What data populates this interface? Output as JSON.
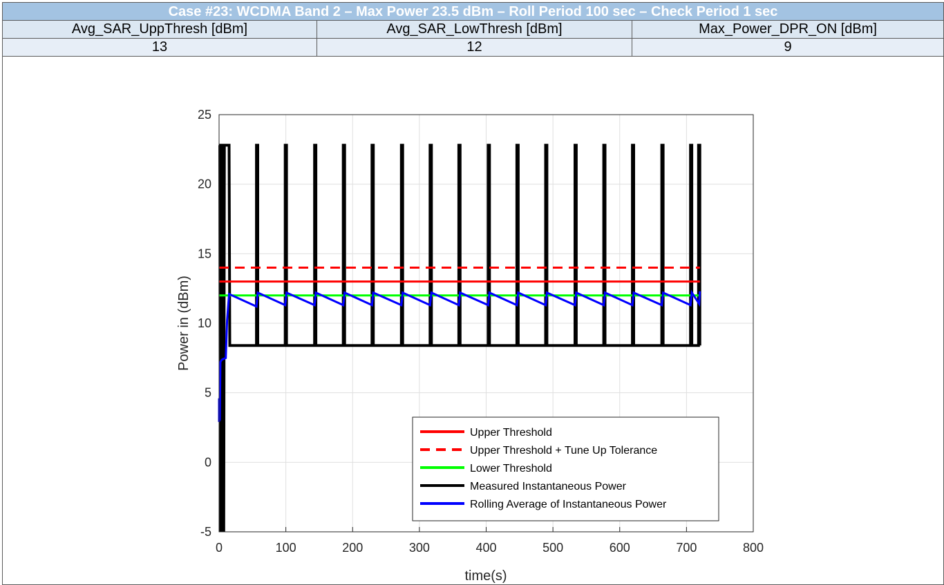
{
  "table": {
    "title": "Case #23: WCDMA Band 2 – Max Power 23.5 dBm – Roll Period 100 sec – Check Period 1 sec",
    "headers": [
      "Avg_SAR_UppThresh [dBm]",
      "Avg_SAR_LowThresh [dBm]",
      "Max_Power_DPR_ON [dBm]"
    ],
    "values": [
      "13",
      "12",
      "9"
    ]
  },
  "chart_data": {
    "type": "line",
    "xlabel": "time(s)",
    "ylabel": "Power in (dBm)",
    "xlim": [
      0,
      800
    ],
    "ylim": [
      -5,
      25
    ],
    "xticks": [
      "0",
      "100",
      "200",
      "300",
      "400",
      "500",
      "600",
      "700",
      "800"
    ],
    "yticks": [
      "-5",
      "0",
      "5",
      "10",
      "15",
      "20",
      "25"
    ],
    "grid": true,
    "legend_position": "bottom-right",
    "series": [
      {
        "name": "Upper Threshold",
        "color": "#ff0000",
        "style": "solid",
        "x": [
          0,
          720
        ],
        "y": [
          13,
          13
        ]
      },
      {
        "name": "Upper Threshold + Tune Up Tolerance",
        "color": "#ff0000",
        "style": "dashed",
        "x": [
          0,
          720
        ],
        "y": [
          14,
          14
        ]
      },
      {
        "name": "Lower Threshold",
        "color": "#00ff00",
        "style": "solid",
        "x": [
          0,
          720
        ],
        "y": [
          12,
          12
        ]
      },
      {
        "name": "Measured Instantaneous Power",
        "color": "#000000",
        "style": "solid",
        "x": [
          0,
          1,
          2,
          3,
          4,
          5,
          6,
          7,
          8,
          9,
          10,
          11,
          12,
          13,
          14,
          15,
          16,
          56,
          56,
          58,
          58,
          99,
          99,
          101,
          101,
          143,
          143,
          145,
          145,
          186,
          186,
          188,
          188,
          229,
          229,
          231,
          231,
          273,
          273,
          275,
          275,
          316,
          316,
          318,
          318,
          359,
          359,
          361,
          361,
          403,
          403,
          405,
          405,
          446,
          446,
          448,
          448,
          489,
          489,
          491,
          491,
          533,
          533,
          535,
          535,
          576,
          576,
          578,
          578,
          619,
          619,
          621,
          621,
          663,
          663,
          665,
          665,
          706,
          706,
          708,
          708,
          718,
          718,
          720,
          720
        ],
        "y": [
          22.8,
          22.8,
          -5,
          22.8,
          -5,
          22.8,
          22.8,
          -5,
          22.8,
          22.8,
          22.8,
          22.8,
          22.8,
          22.8,
          22.8,
          22.8,
          8.4,
          8.4,
          22.8,
          22.8,
          8.4,
          8.4,
          22.8,
          22.8,
          8.4,
          8.4,
          22.8,
          22.8,
          8.4,
          8.4,
          22.8,
          22.8,
          8.4,
          8.4,
          22.8,
          22.8,
          8.4,
          8.4,
          22.8,
          22.8,
          8.4,
          8.4,
          22.8,
          22.8,
          8.4,
          8.4,
          22.8,
          22.8,
          8.4,
          8.4,
          22.8,
          22.8,
          8.4,
          8.4,
          22.8,
          22.8,
          8.4,
          8.4,
          22.8,
          22.8,
          8.4,
          8.4,
          22.8,
          22.8,
          8.4,
          8.4,
          22.8,
          22.8,
          8.4,
          8.4,
          22.8,
          22.8,
          8.4,
          8.4,
          22.8,
          22.8,
          8.4,
          8.4,
          22.8,
          22.8,
          8.4,
          8.4,
          22.8,
          22.8,
          8.4
        ]
      },
      {
        "name": "Rolling Average of Instantaneous Power",
        "color": "#0000ff",
        "style": "solid",
        "x": [
          0,
          0,
          1,
          2,
          3,
          5,
          10,
          12,
          15,
          56,
          58,
          99,
          101,
          143,
          145,
          186,
          188,
          229,
          231,
          273,
          275,
          316,
          318,
          359,
          361,
          403,
          405,
          446,
          448,
          489,
          491,
          533,
          535,
          576,
          578,
          619,
          621,
          663,
          665,
          706,
          708,
          719,
          720
        ],
        "y": [
          2.9,
          4.6,
          3,
          7.2,
          7.3,
          7.4,
          7.5,
          10.2,
          12.1,
          11.2,
          12.2,
          11.3,
          12.2,
          11.3,
          12.2,
          11.3,
          12.2,
          11.3,
          12.2,
          11.3,
          12.2,
          11.3,
          12.2,
          11.3,
          12.2,
          11.3,
          12.2,
          11.3,
          12.2,
          11.3,
          12.2,
          11.3,
          12.2,
          11.3,
          12.2,
          11.3,
          12.2,
          11.3,
          12.2,
          11.3,
          12.2,
          11.4,
          12.3
        ]
      }
    ]
  }
}
